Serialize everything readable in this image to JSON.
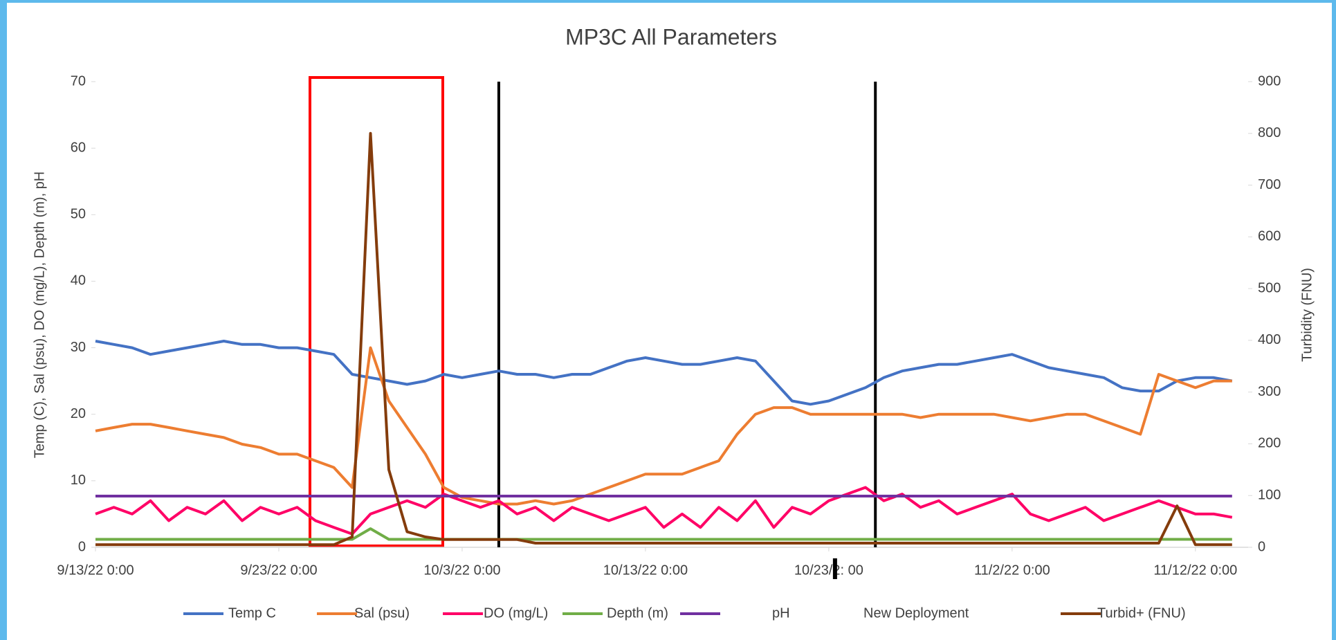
{
  "chart_data": {
    "type": "line",
    "title": "MP3C All Parameters",
    "y_label": "Temp (C), Sal (psu), DO (mg/L), Depth (m), pH",
    "y2_label": "Turbidity (FNU)",
    "x": [
      "9/13/22 0:00",
      "9/14/22 0:00",
      "9/15/22 0:00",
      "9/16/22 0:00",
      "9/17/22 0:00",
      "9/18/22 0:00",
      "9/19/22 0:00",
      "9/20/22 0:00",
      "9/21/22 0:00",
      "9/22/22 0:00",
      "9/23/22 0:00",
      "9/24/22 0:00",
      "9/25/22 0:00",
      "9/26/22 0:00",
      "9/27/22 0:00",
      "9/28/22 0:00",
      "9/29/22 0:00",
      "9/30/22 0:00",
      "10/1/22 0:00",
      "10/2/22 0:00",
      "10/3/22 0:00",
      "10/4/22 0:00",
      "10/5/22 0:00",
      "10/6/22 0:00",
      "10/7/22 0:00",
      "10/8/22 0:00",
      "10/9/22 0:00",
      "10/10/22 0:00",
      "10/11/22 0:00",
      "10/12/22 0:00",
      "10/13/22 0:00",
      "10/14/22 0:00",
      "10/15/22 0:00",
      "10/16/22 0:00",
      "10/17/22 0:00",
      "10/18/22 0:00",
      "10/19/22 0:00",
      "10/20/22 0:00",
      "10/21/22 0:00",
      "10/22/22 0:00",
      "10/23/22 0:00",
      "10/24/22 0:00",
      "10/25/22 0:00",
      "10/26/22 0:00",
      "10/27/22 0:00",
      "10/28/22 0:00",
      "10/29/22 0:00",
      "10/30/22 0:00",
      "10/31/22 0:00",
      "11/1/22 0:00",
      "11/2/22 0:00",
      "11/3/22 0:00",
      "11/4/22 0:00",
      "11/5/22 0:00",
      "11/6/22 0:00",
      "11/7/22 0:00",
      "11/8/22 0:00",
      "11/9/22 0:00",
      "11/10/22 0:00",
      "11/11/22 0:00",
      "11/12/22 0:00",
      "11/13/22 0:00",
      "11/14/22 0:00"
    ],
    "series": [
      {
        "name": "Temp C",
        "color": "#4472c4",
        "values": [
          31,
          30.5,
          30,
          29,
          29.5,
          30,
          30.5,
          31,
          30.5,
          30.5,
          30,
          30,
          29.5,
          29,
          26,
          25.5,
          25,
          24.5,
          25,
          26,
          25.5,
          26,
          26.5,
          26,
          26,
          25.5,
          26,
          26,
          27,
          28,
          28.5,
          28,
          27.5,
          27.5,
          28,
          28.5,
          28,
          25,
          22,
          21.5,
          22,
          23,
          24,
          25.5,
          26.5,
          27,
          27.5,
          27.5,
          28,
          28.5,
          29,
          28,
          27,
          26.5,
          26,
          25.5,
          24,
          23.5,
          23.5,
          25,
          25.5,
          25.5,
          25
        ]
      },
      {
        "name": "Sal (psu)",
        "color": "#ed7d31",
        "values": [
          17.5,
          18,
          18.5,
          18.5,
          18,
          17.5,
          17,
          16.5,
          15.5,
          15,
          14,
          14,
          13,
          12,
          9,
          30,
          22,
          18,
          14,
          9,
          7.5,
          7,
          6.5,
          6.5,
          7,
          6.5,
          7,
          8,
          9,
          10,
          11,
          11,
          11,
          12,
          13,
          17,
          20,
          21,
          21,
          20,
          20,
          20,
          20,
          20,
          20,
          19.5,
          20,
          20,
          20,
          20,
          19.5,
          19,
          19.5,
          20,
          20,
          19,
          18,
          17,
          26,
          25,
          24,
          25,
          25
        ]
      },
      {
        "name": "DO (mg/L)",
        "color": "#ff0066",
        "values": [
          5,
          6,
          5,
          7,
          4,
          6,
          5,
          7,
          4,
          6,
          5,
          6,
          4,
          3,
          2,
          5,
          6,
          7,
          6,
          8,
          7,
          6,
          7,
          5,
          6,
          4,
          6,
          5,
          4,
          5,
          6,
          3,
          5,
          3,
          6,
          4,
          7,
          3,
          6,
          5,
          7,
          8,
          9,
          7,
          8,
          6,
          7,
          5,
          6,
          7,
          8,
          5,
          4,
          5,
          6,
          4,
          5,
          6,
          7,
          6,
          5,
          5,
          4.5
        ]
      },
      {
        "name": "Depth (m)",
        "color": "#70ad47",
        "values": [
          1.2,
          1.2,
          1.2,
          1.2,
          1.2,
          1.2,
          1.2,
          1.2,
          1.2,
          1.2,
          1.2,
          1.2,
          1.2,
          1.2,
          1.2,
          2.8,
          1.2,
          1.2,
          1.2,
          1.2,
          1.2,
          1.2,
          1.2,
          1.2,
          1.2,
          1.2,
          1.2,
          1.2,
          1.2,
          1.2,
          1.2,
          1.2,
          1.2,
          1.2,
          1.2,
          1.2,
          1.2,
          1.2,
          1.2,
          1.2,
          1.2,
          1.2,
          1.2,
          1.2,
          1.2,
          1.2,
          1.2,
          1.2,
          1.2,
          1.2,
          1.2,
          1.2,
          1.2,
          1.2,
          1.2,
          1.2,
          1.2,
          1.2,
          1.2,
          1.2,
          1.2,
          1.2,
          1.2
        ]
      },
      {
        "name": "pH",
        "color": "#7030a0",
        "values": [
          7.7,
          7.7,
          7.7,
          7.7,
          7.7,
          7.7,
          7.7,
          7.7,
          7.7,
          7.7,
          7.7,
          7.7,
          7.7,
          7.7,
          7.7,
          7.7,
          7.7,
          7.7,
          7.7,
          7.7,
          7.7,
          7.7,
          7.7,
          7.7,
          7.7,
          7.7,
          7.7,
          7.7,
          7.7,
          7.7,
          7.7,
          7.7,
          7.7,
          7.7,
          7.7,
          7.7,
          7.7,
          7.7,
          7.7,
          7.7,
          7.7,
          7.7,
          7.7,
          7.7,
          7.7,
          7.7,
          7.7,
          7.7,
          7.7,
          7.7,
          7.7,
          7.7,
          7.7,
          7.7,
          7.7,
          7.7,
          7.7,
          7.7,
          7.7,
          7.7,
          7.7,
          7.7,
          7.7
        ]
      },
      {
        "name": "Turbid+ (FNU)",
        "color": "#843c0c",
        "axis": "y2",
        "values": [
          5,
          5,
          5,
          5,
          5,
          5,
          5,
          5,
          5,
          5,
          5,
          5,
          5,
          5,
          20,
          800,
          150,
          30,
          20,
          15,
          15,
          15,
          15,
          15,
          8,
          8,
          8,
          8,
          8,
          8,
          8,
          8,
          8,
          8,
          8,
          8,
          8,
          8,
          8,
          8,
          8,
          8,
          8,
          8,
          8,
          8,
          8,
          8,
          8,
          8,
          8,
          8,
          8,
          8,
          8,
          8,
          8,
          8,
          8,
          80,
          5,
          5,
          5
        ]
      }
    ],
    "deployment_label": "New Deployment",
    "deployment_color": "#000000",
    "deployments": [
      "10/5/22 0:00",
      "10/25/22 13:00"
    ],
    "xlim": [
      "9/13/22 0:00",
      "11/14/22 21:00"
    ],
    "xticks": [
      "9/13/22 0:00",
      "9/23/22 0:00",
      "10/3/22 0:00",
      "10/13/22 0:00",
      {
        "value": "10/23/22 0:00",
        "label": "10/23/2:   00"
      },
      "11/2/22 0:00",
      "11/12/22 0:00"
    ],
    "ylim": [
      0,
      70
    ],
    "yticks": [
      0,
      10,
      20,
      30,
      40,
      50,
      60,
      70
    ],
    "y2lim": [
      0,
      900
    ],
    "y2ticks": [
      0,
      100,
      200,
      300,
      400,
      500,
      600,
      700,
      800,
      900
    ]
  }
}
